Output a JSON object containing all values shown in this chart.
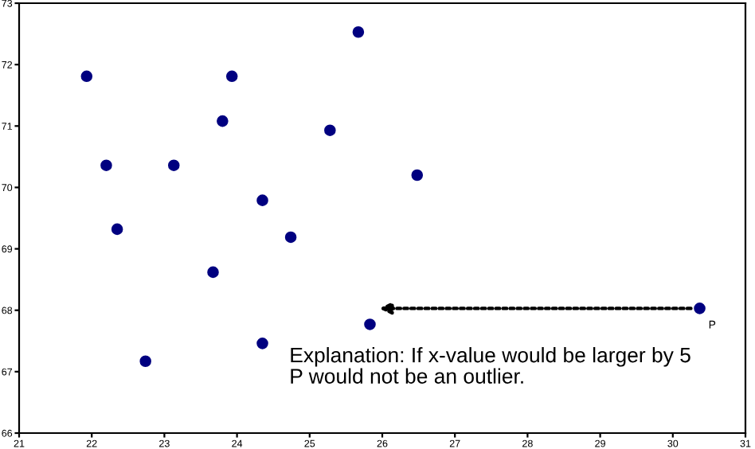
{
  "chart_data": {
    "type": "scatter",
    "x": [
      21.93,
      22.2,
      22.35,
      22.74,
      23.13,
      23.67,
      23.8,
      23.93,
      24.35,
      24.35,
      24.74,
      25.28,
      25.67,
      25.83,
      26.48,
      30.37
    ],
    "series": [
      {
        "color": "#000080",
        "values": [
          71.81,
          70.36,
          69.32,
          67.17,
          70.36,
          68.62,
          71.08,
          71.81,
          69.79,
          67.46,
          69.19,
          70.93,
          72.53,
          67.77,
          70.2,
          68.03
        ]
      }
    ],
    "xlim": [
      21,
      31
    ],
    "xticks": [
      21,
      22,
      23,
      24,
      25,
      26,
      27,
      28,
      29,
      30,
      31
    ],
    "ylim": [
      66,
      73
    ],
    "yticks": [
      66,
      67,
      68,
      69,
      70,
      71,
      72,
      73
    ],
    "marker": "circle",
    "grid": false,
    "legend": false,
    "annotations": [
      {
        "text": "P",
        "x": 30.37,
        "y": 68.03
      },
      "Explanation: If x-value would be larger by 5\nP would not be an outlier."
    ]
  }
}
